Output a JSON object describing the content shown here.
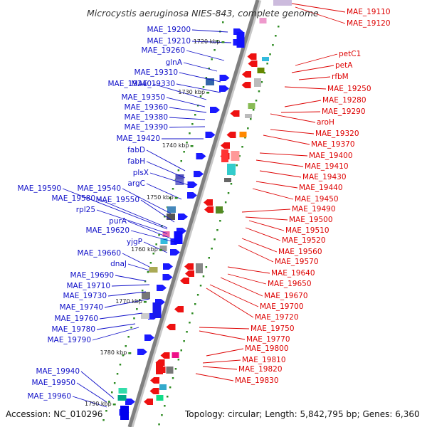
{
  "title": "Microcystis aeruginosa NIES-843, complete genome",
  "accession": "Accession: NC_010296",
  "summary": "Topology: circular; Length: 5,842,795 bp; Genes: 6,360",
  "colors": {
    "left_label": "#1010c8",
    "right_label": "#dd0000",
    "backbone": "#808080",
    "tick": "#2e8b22"
  },
  "kbp_ticks": [
    "1720 kbp",
    "1730 kbp",
    "1740 kbp",
    "1750 kbp",
    "1760 kbp",
    "1770 kbp",
    "1780 kbp",
    "1790 kbp"
  ],
  "left_labels": [
    "MAE_19200",
    "MAE_19210",
    "MAE_19260",
    "glnA",
    "MAE_19310",
    "MAE_19340",
    "MAE_19330",
    "MAE_19350",
    "MAE_19360",
    "MAE_19380",
    "MAE_19390",
    "MAE_19420",
    "fabD",
    "fabH",
    "plsX",
    "argC",
    "MAE_19590",
    "MAE_19540",
    "MAE_19580",
    "MAE_19550",
    "rpl25",
    "purA",
    "MAE_19620",
    "yjgP",
    "MAE_19660",
    "dnaJ",
    "MAE_19690",
    "MAE_19710",
    "MAE_19730",
    "MAE_19740",
    "MAE_19760",
    "MAE_19780",
    "MAE_19790",
    "MAE_19940",
    "MAE_19950",
    "MAE_19960"
  ],
  "right_labels": [
    "MAE_19110",
    "MAE_19120",
    "petC1",
    "petA",
    "rfbM",
    "MAE_19250",
    "MAE_19280",
    "MAE_19290",
    "aroH",
    "MAE_19320",
    "MAE_19370",
    "MAE_19400",
    "MAE_19410",
    "MAE_19430",
    "MAE_19440",
    "MAE_19450",
    "MAE_19490",
    "MAE_19500",
    "MAE_19510",
    "MAE_19520",
    "MAE_19560",
    "MAE_19570",
    "MAE_19640",
    "MAE_19650",
    "MAE_19670",
    "MAE_19700",
    "MAE_19720",
    "MAE_19750",
    "MAE_19770",
    "MAE_19800",
    "MAE_19810",
    "MAE_19820",
    "MAE_19830"
  ]
}
